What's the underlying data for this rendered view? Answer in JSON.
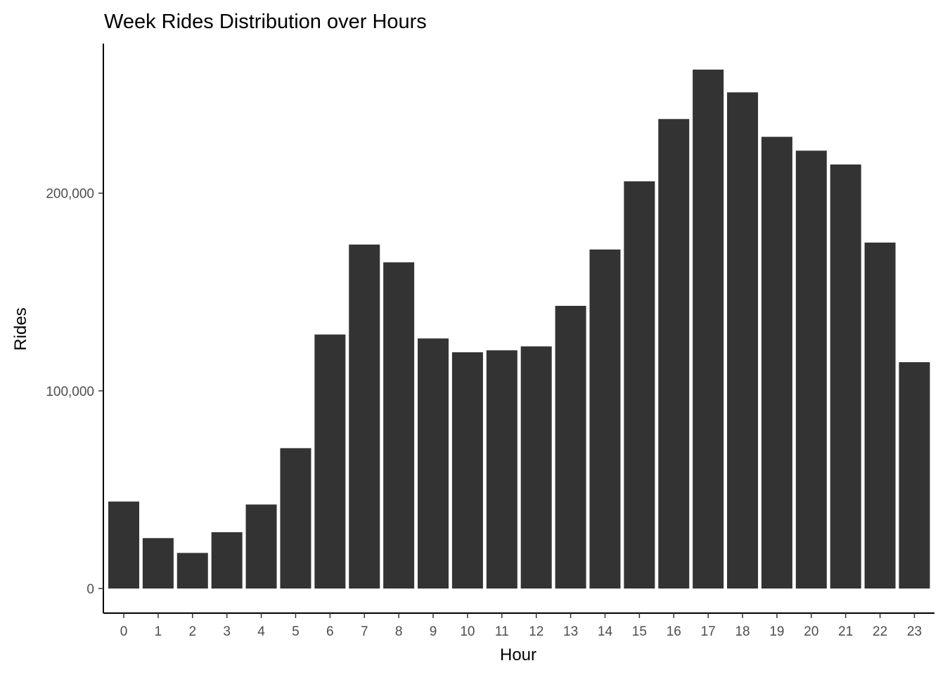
{
  "chart_data": {
    "type": "bar",
    "title": "Week Rides Distribution over Hours",
    "xlabel": "Hour",
    "ylabel": "Rides",
    "categories": [
      "0",
      "1",
      "2",
      "3",
      "4",
      "5",
      "6",
      "7",
      "8",
      "9",
      "10",
      "11",
      "12",
      "13",
      "14",
      "15",
      "16",
      "17",
      "18",
      "19",
      "20",
      "21",
      "22",
      "23"
    ],
    "values": [
      44000,
      25500,
      18000,
      28500,
      42500,
      71000,
      128500,
      174000,
      165000,
      126500,
      119500,
      120500,
      122500,
      143000,
      171500,
      206000,
      237500,
      262500,
      251000,
      228500,
      221500,
      214500,
      175000,
      114500
    ],
    "ylim": [
      0,
      262500
    ],
    "yticks": [
      0,
      100000,
      200000
    ],
    "ytick_labels": [
      "0",
      "100,000",
      "200,000"
    ],
    "grid": false,
    "legend": "none",
    "bar_color": "#333333",
    "axis_color": "#000000",
    "tick_label_color": "#4d4d4d"
  }
}
